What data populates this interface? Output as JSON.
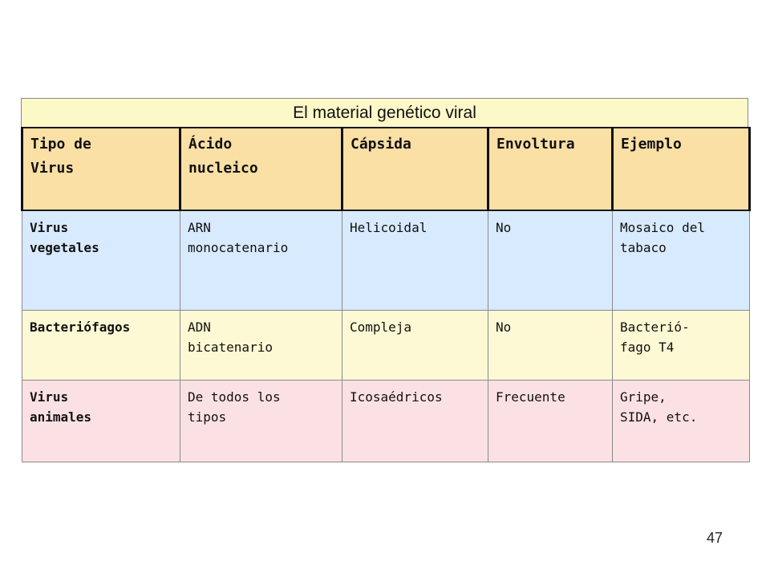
{
  "title": "El material genético viral",
  "table": {
    "headers": [
      "Tipo de\nVirus",
      "Ácido\nnucleico",
      "Cápsida",
      "Envoltura",
      "Ejemplo"
    ],
    "rows": [
      {
        "tipo": "Virus\nvegetales",
        "acido": "ARN\nmonocatenario",
        "capsida": "Helicoidal",
        "envoltura": "No",
        "ejemplo": "Mosaico del\ntabaco",
        "background": "#d8eafd"
      },
      {
        "tipo": "Bacteriófagos",
        "acido": "ADN\nbicatenario",
        "capsida": "Compleja",
        "envoltura": "No",
        "ejemplo": "Bacterió-\nfago T4",
        "background": "#fdf9d4"
      },
      {
        "tipo": "Virus\nanimales",
        "acido": "De todos los\ntipos",
        "capsida": "Icosaédricos",
        "envoltura": "Frecuente",
        "ejemplo": "Gripe,\nSIDA, etc.",
        "background": "#fbe1e4"
      }
    ]
  },
  "colors": {
    "title_bar": "#fdf8c8",
    "header_row": "#fbe0a6"
  },
  "page_number": "47"
}
